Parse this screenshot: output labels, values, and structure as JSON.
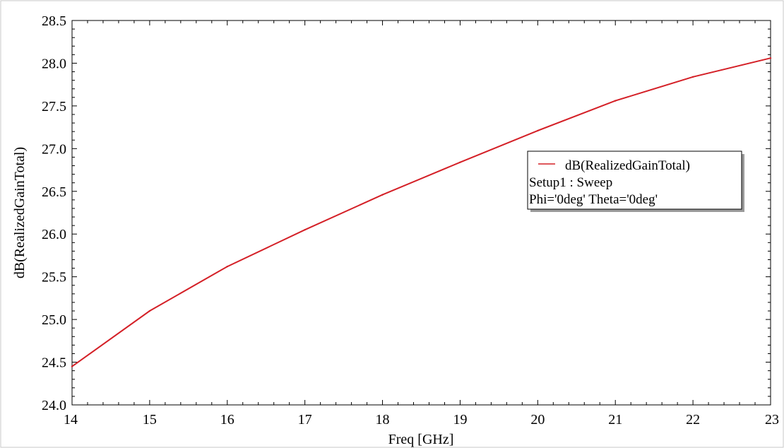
{
  "chart_data": {
    "type": "line",
    "title": "",
    "xlabel": "Freq [GHz]",
    "ylabel": "dB(RealizedGainTotal)",
    "xlim": [
      14,
      23
    ],
    "ylim": [
      24.0,
      28.5
    ],
    "x_ticks": [
      "14",
      "15",
      "16",
      "17",
      "18",
      "19",
      "20",
      "21",
      "22",
      "23"
    ],
    "y_ticks": [
      "24.0",
      "24.5",
      "25.0",
      "25.5",
      "26.0",
      "26.5",
      "27.0",
      "27.5",
      "28.0",
      "28.5"
    ],
    "grid": false,
    "legend_position": "right",
    "series": [
      {
        "name": "dB(RealizedGainTotal)",
        "color": "#d42027",
        "x": [
          14,
          15,
          16,
          17,
          18,
          19,
          20,
          21,
          22,
          23
        ],
        "y": [
          24.45,
          25.1,
          25.62,
          26.05,
          26.46,
          26.84,
          27.21,
          27.56,
          27.84,
          28.06
        ]
      }
    ],
    "legend": {
      "series_label": "dB(RealizedGainTotal)",
      "line2": "Setup1 : Sweep",
      "line3": "Phi='0deg' Theta='0deg'"
    }
  }
}
